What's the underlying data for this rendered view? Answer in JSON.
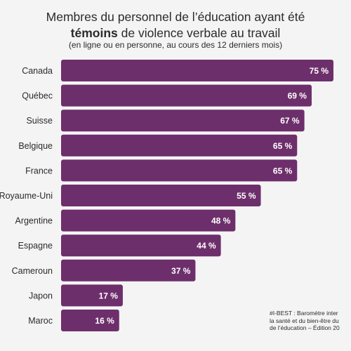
{
  "title": {
    "line1": "Membres du personnel de l’éducation ayant été",
    "line2_bold": "témoins",
    "line2_rest": " de violence verbale au travail"
  },
  "subtitle": "(en ligne ou en personne, au cours des 12 derniers mois)",
  "source": {
    "line1": "#I-BEST : Baromètre inter",
    "line2": "la santé et du bien-être du",
    "line3": "de l’éducation – Édition 20"
  },
  "colors": {
    "bar": "#6d2f6b",
    "label_text": "#ffffff",
    "category_text": "#2b2b2b",
    "background": "#f4f4f4"
  },
  "chart_data": {
    "type": "bar",
    "orientation": "horizontal",
    "categories": [
      "Canada",
      "Québec",
      "Suisse",
      "Belgique",
      "France",
      "Royaume-Uni",
      "Argentine",
      "Espagne",
      "Cameroun",
      "Japon",
      "Maroc"
    ],
    "values": [
      75,
      69,
      67,
      65,
      65,
      55,
      48,
      44,
      37,
      17,
      16
    ],
    "value_labels": [
      "75 %",
      "69 %",
      "67 %",
      "65 %",
      "65 %",
      "55 %",
      "48 %",
      "44 %",
      "37 %",
      "17 %",
      "16 %"
    ],
    "unit": "%",
    "xlim": [
      0,
      100
    ],
    "grid": false,
    "legend": "none"
  }
}
